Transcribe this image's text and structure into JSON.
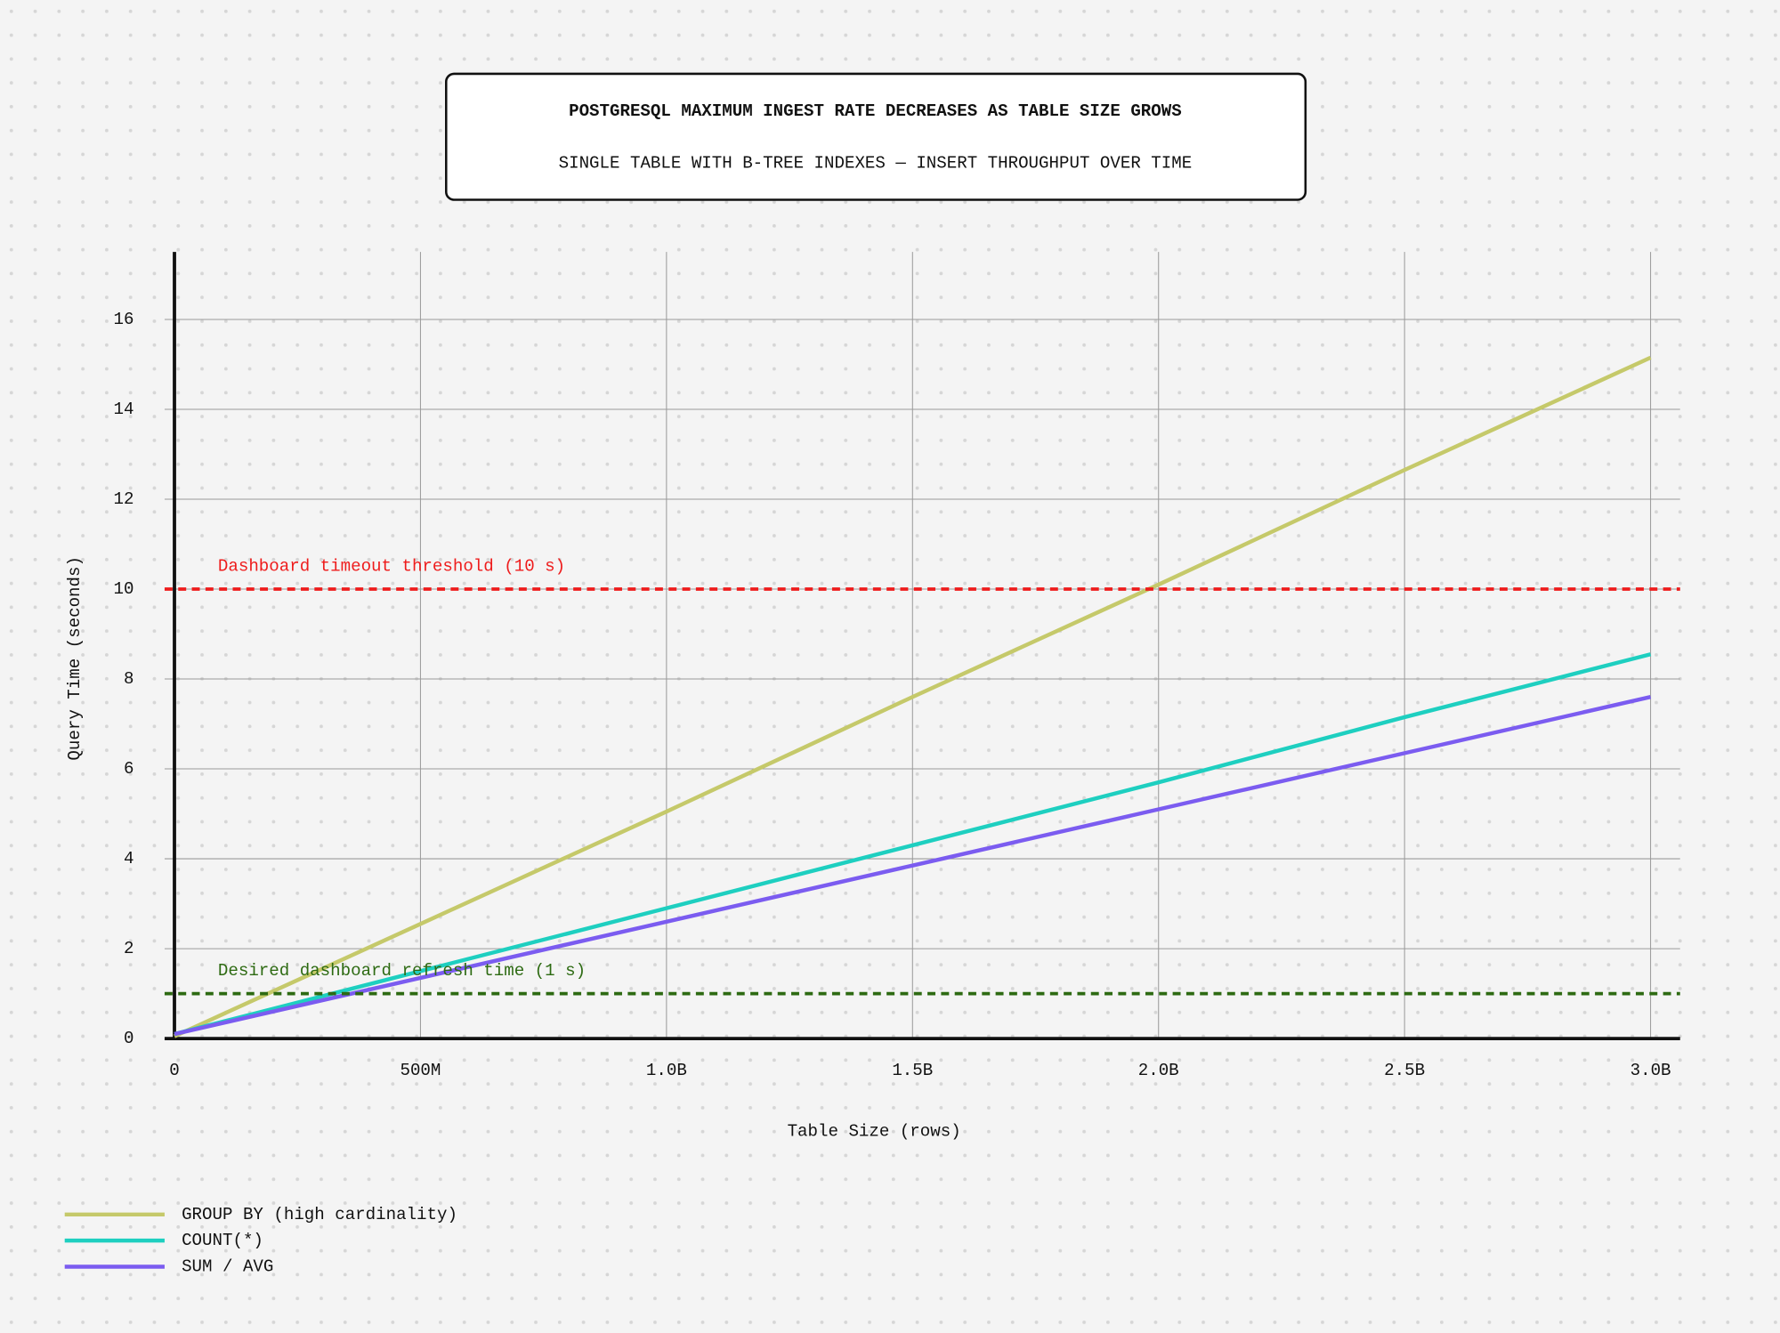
{
  "chart_data": {
    "type": "line",
    "title": "POSTGRESQL MAXIMUM INGEST RATE DECREASES AS TABLE SIZE GROWS",
    "subtitle": "SINGLE TABLE WITH B-TREE INDEXES — INSERT THROUGHPUT OVER TIME",
    "x_label": "Table Size (rows)",
    "y_label": "Query Time (seconds)",
    "x": [
      0,
      500000000,
      1000000000,
      1500000000,
      2000000000,
      2500000000,
      3000000000
    ],
    "series": [
      {
        "name": "GROUP BY (high cardinality)",
        "color": "#c5c96a",
        "values": [
          0.05,
          2.55,
          5.05,
          7.6,
          10.1,
          12.65,
          15.15
        ]
      },
      {
        "name": "COUNT(*)",
        "color": "#1ecfc0",
        "values": [
          0.1,
          1.5,
          2.9,
          4.3,
          5.7,
          7.15,
          8.55
        ]
      },
      {
        "name": "SUM / AVG",
        "color": "#7b5cf0",
        "values": [
          0.1,
          1.35,
          2.6,
          3.85,
          5.1,
          6.35,
          7.6
        ]
      }
    ],
    "annotations": [
      {
        "label": "Dashboard timeout threshold (10 s)",
        "value": 10,
        "color": "#ee1c1c"
      },
      {
        "label": "Desired dashboard refresh time (1 s)",
        "value": 1,
        "color": "#2d6a12"
      }
    ],
    "xlim": [
      -20000000,
      3060000000
    ],
    "ylim": [
      0,
      17.5
    ],
    "xticks": [
      0,
      {
        "value": 500000000,
        "label": "500M"
      },
      {
        "value": 1000000000,
        "label": "1.0B"
      },
      {
        "value": 1500000000,
        "label": "1.5B"
      },
      {
        "value": 2000000000,
        "label": "2.0B"
      },
      {
        "value": 2500000000,
        "label": "2.5B"
      },
      {
        "value": 3000000000,
        "label": "3.0B"
      }
    ],
    "yticks": [
      0,
      2,
      4,
      6,
      8,
      10,
      12,
      14,
      16
    ],
    "grid": true,
    "legend": "bottom-left"
  }
}
